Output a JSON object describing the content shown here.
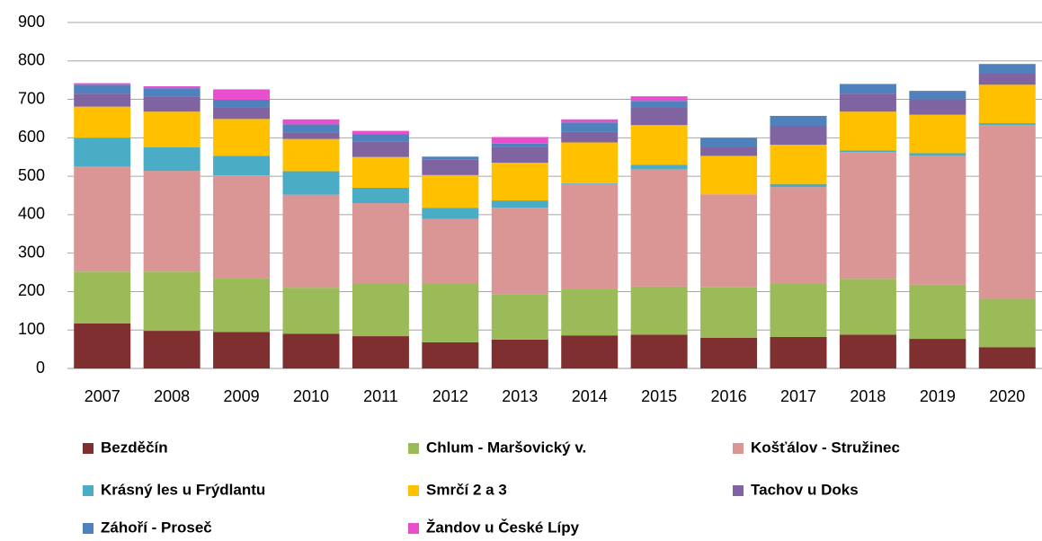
{
  "chart_data": {
    "type": "stacked_bar",
    "categories": [
      "2007",
      "2008",
      "2009",
      "2010",
      "2011",
      "2012",
      "2013",
      "2014",
      "2015",
      "2016",
      "2017",
      "2018",
      "2019",
      "2020"
    ],
    "series": [
      {
        "name": "Bezděčín",
        "color": "#7f2f2f",
        "values": [
          117,
          98,
          95,
          90,
          84,
          68,
          75,
          86,
          88,
          80,
          82,
          88,
          77,
          55
        ]
      },
      {
        "name": "Chlum - Maršovický v.",
        "color": "#9bbb59",
        "values": [
          135,
          154,
          139,
          120,
          138,
          153,
          117,
          121,
          125,
          131,
          139,
          145,
          141,
          126
        ]
      },
      {
        "name": "Košťálov - Stružinec",
        "color": "#d99694",
        "values": [
          274,
          262,
          268,
          242,
          208,
          168,
          226,
          273,
          305,
          242,
          251,
          330,
          336,
          452
        ]
      },
      {
        "name": "Krásný les u Frýdlantu",
        "color": "#4bacc6",
        "values": [
          74,
          61,
          51,
          61,
          40,
          29,
          19,
          2,
          12,
          0,
          8,
          4,
          6,
          5
        ]
      },
      {
        "name": "Smrčí 2 a 3",
        "color": "#ffc000",
        "values": [
          81,
          93,
          96,
          84,
          80,
          85,
          98,
          106,
          103,
          100,
          102,
          101,
          100,
          100
        ]
      },
      {
        "name": "Tachov u Doks",
        "color": "#8064a2",
        "values": [
          34,
          40,
          31,
          17,
          41,
          40,
          41,
          27,
          45,
          22,
          48,
          47,
          40,
          30
        ]
      },
      {
        "name": "Záhoří - Proseč",
        "color": "#4f81bd",
        "values": [
          23,
          21,
          19,
          21,
          19,
          8,
          9,
          25,
          18,
          25,
          27,
          25,
          22,
          24
        ]
      },
      {
        "name": "Žandov u České Lípy",
        "color": "#e84fcf",
        "values": [
          4,
          5,
          27,
          13,
          8,
          0,
          17,
          8,
          12,
          0,
          0,
          0,
          0,
          0
        ]
      }
    ],
    "ylim": [
      0,
      900
    ],
    "yticks": [
      0,
      100,
      200,
      300,
      400,
      500,
      600,
      700,
      800,
      900
    ],
    "grid": true
  }
}
